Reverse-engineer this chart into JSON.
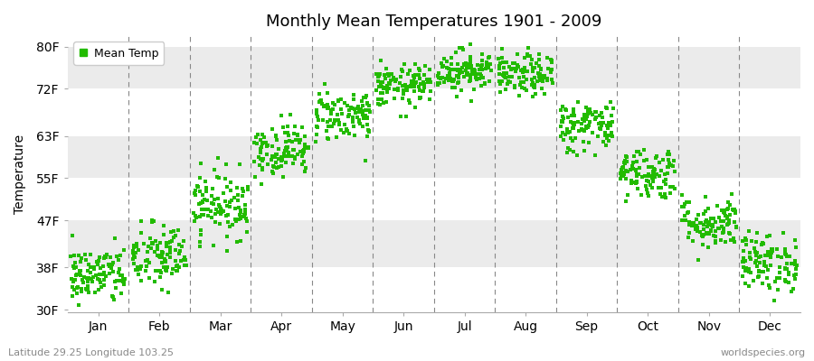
{
  "title": "Monthly Mean Temperatures 1901 - 2009",
  "ylabel": "Temperature",
  "yticks": [
    30,
    38,
    47,
    55,
    63,
    72,
    80
  ],
  "ytick_labels": [
    "30F",
    "38F",
    "47F",
    "55F",
    "63F",
    "72F",
    "80F"
  ],
  "ylim": [
    29.5,
    82
  ],
  "months": [
    "Jan",
    "Feb",
    "Mar",
    "Apr",
    "May",
    "Jun",
    "Jul",
    "Aug",
    "Sep",
    "Oct",
    "Nov",
    "Dec"
  ],
  "dot_color": "#22bb00",
  "fig_bg_color": "#ffffff",
  "band_colors": [
    "#ffffff",
    "#ebebeb",
    "#ffffff",
    "#ebebeb",
    "#ffffff",
    "#ebebeb"
  ],
  "legend_label": "Mean Temp",
  "bottom_left": "Latitude 29.25 Longitude 103.25",
  "bottom_right": "worldspecies.org",
  "mean_temps_f": [
    36.5,
    40.0,
    50.0,
    60.5,
    67.0,
    72.5,
    75.5,
    74.5,
    65.0,
    56.0,
    46.5,
    39.0
  ],
  "std_devs": [
    2.8,
    3.2,
    3.2,
    2.5,
    2.5,
    2.0,
    2.0,
    2.0,
    2.5,
    2.5,
    2.5,
    2.8
  ],
  "n_years": 109,
  "seed": 42
}
